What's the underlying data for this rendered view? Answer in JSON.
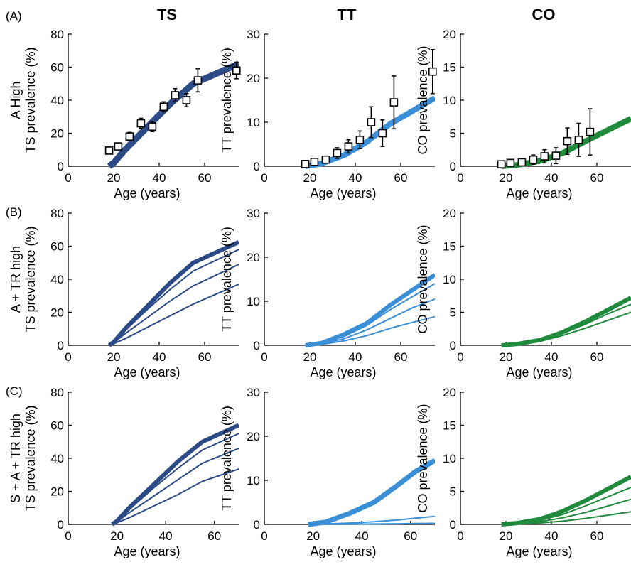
{
  "figure": {
    "column_titles": [
      "TS",
      "TT",
      "CO"
    ],
    "row_letters": [
      "(A)",
      "(B)",
      "(C)"
    ]
  },
  "colors": {
    "TS": "#2b4a86",
    "TT": "#3a8fd6",
    "CO": "#1f8a3c"
  },
  "chart_data": [
    {
      "id": "A-TS",
      "type": "line",
      "row": "(A)",
      "column": "TS",
      "xlabel": "Age (years)",
      "ylabel": [
        "A High",
        "TS prevalence (%)"
      ],
      "xlim": [
        0,
        75
      ],
      "ylim": [
        0,
        80
      ],
      "xticks": [
        "0",
        "20",
        "40",
        "60"
      ],
      "yticks": [
        "0",
        "20",
        "40",
        "60",
        "80"
      ],
      "series": [
        {
          "x": [
            18,
            20,
            25,
            35,
            45,
            55,
            75
          ],
          "y": [
            0,
            2,
            10,
            24,
            38,
            50,
            62
          ],
          "width": 9
        }
      ],
      "observed": [
        {
          "x": 18,
          "y": 9.5,
          "err": 2
        },
        {
          "x": 22,
          "y": 12,
          "err": 2
        },
        {
          "x": 27,
          "y": 18,
          "err": 2.5
        },
        {
          "x": 32,
          "y": 26,
          "err": 3
        },
        {
          "x": 37,
          "y": 24,
          "err": 3
        },
        {
          "x": 42,
          "y": 36,
          "err": 3
        },
        {
          "x": 47,
          "y": 43,
          "err": 4
        },
        {
          "x": 52,
          "y": 40,
          "err": 4
        },
        {
          "x": 57,
          "y": 52,
          "err": 7
        },
        {
          "x": 74,
          "y": 58,
          "err": 5
        }
      ]
    },
    {
      "id": "A-TT",
      "type": "line",
      "row": "(A)",
      "column": "TT",
      "xlabel": "Age (years)",
      "ylabel": [
        "TT prevalence (%)"
      ],
      "xlim": [
        0,
        75
      ],
      "ylim": [
        0,
        30
      ],
      "xticks": [
        "0",
        "20",
        "40",
        "60"
      ],
      "yticks": [
        "0",
        "10",
        "20",
        "30"
      ],
      "series": [
        {
          "x": [
            18,
            25,
            35,
            45,
            55,
            65,
            75
          ],
          "y": [
            0,
            0.6,
            2.5,
            5.5,
            9.5,
            12.5,
            15.5
          ],
          "width": 8
        }
      ],
      "observed": [
        {
          "x": 18,
          "y": 0.5,
          "err": 0.8
        },
        {
          "x": 22,
          "y": 1,
          "err": 0.8
        },
        {
          "x": 27,
          "y": 1.5,
          "err": 0.8
        },
        {
          "x": 32,
          "y": 3,
          "err": 1.2
        },
        {
          "x": 37,
          "y": 4.5,
          "err": 1.5
        },
        {
          "x": 42,
          "y": 6,
          "err": 2
        },
        {
          "x": 47,
          "y": 10,
          "err": 3.5
        },
        {
          "x": 52,
          "y": 7.5,
          "err": 3
        },
        {
          "x": 57,
          "y": 14.5,
          "err": 6
        },
        {
          "x": 74,
          "y": 21.5,
          "err": 5
        }
      ]
    },
    {
      "id": "A-CO",
      "type": "line",
      "row": "(A)",
      "column": "CO",
      "xlabel": "Age (years)",
      "ylabel": [
        "CO prevalence (%)"
      ],
      "xlim": [
        0,
        75
      ],
      "ylim": [
        0,
        20
      ],
      "xticks": [
        "0",
        "20",
        "40",
        "60"
      ],
      "yticks": [
        "0",
        "5",
        "10",
        "15",
        "20"
      ],
      "series": [
        {
          "x": [
            18,
            25,
            35,
            45,
            55,
            65,
            75
          ],
          "y": [
            0,
            0.2,
            0.8,
            2,
            3.8,
            5.5,
            7.2
          ],
          "width": 8
        }
      ],
      "observed": [
        {
          "x": 18,
          "y": 0.3,
          "err": 0.5
        },
        {
          "x": 22,
          "y": 0.5,
          "err": 0.5
        },
        {
          "x": 27,
          "y": 0.6,
          "err": 0.5
        },
        {
          "x": 32,
          "y": 1,
          "err": 0.7
        },
        {
          "x": 37,
          "y": 1.5,
          "err": 1
        },
        {
          "x": 42,
          "y": 1.6,
          "err": 1.2
        },
        {
          "x": 47,
          "y": 3.8,
          "err": 2
        },
        {
          "x": 52,
          "y": 4,
          "err": 2.5
        },
        {
          "x": 57,
          "y": 5.2,
          "err": 3.5
        }
      ]
    },
    {
      "id": "B-TS",
      "type": "line",
      "row": "(B)",
      "column": "TS",
      "xlabel": "Age (years)",
      "ylabel": [
        "A + TR high",
        "TS prevalence (%)"
      ],
      "xlim": [
        0,
        75
      ],
      "ylim": [
        0,
        80
      ],
      "xticks": [
        "0",
        "20",
        "40",
        "60"
      ],
      "yticks": [
        "0",
        "20",
        "40",
        "60",
        "80"
      ],
      "series": [
        {
          "x": [
            18,
            20,
            25,
            35,
            45,
            55,
            75
          ],
          "y": [
            0,
            2,
            10,
            24,
            38,
            50,
            62.5
          ],
          "width": 6
        },
        {
          "x": [
            18,
            20,
            25,
            35,
            45,
            55,
            75
          ],
          "y": [
            0,
            2,
            9,
            22,
            34,
            45,
            58
          ],
          "width": 2
        },
        {
          "x": [
            18,
            20,
            25,
            35,
            45,
            55,
            75
          ],
          "y": [
            0,
            1.5,
            7,
            17,
            27,
            36,
            49
          ],
          "width": 2
        },
        {
          "x": [
            18,
            20,
            25,
            35,
            45,
            55,
            75
          ],
          "y": [
            0,
            1,
            4,
            11,
            18,
            25,
            37
          ],
          "width": 2
        }
      ]
    },
    {
      "id": "B-TT",
      "type": "line",
      "row": "(B)",
      "column": "TT",
      "xlabel": "Age (years)",
      "ylabel": [
        "TT prevalence (%)"
      ],
      "xlim": [
        0,
        75
      ],
      "ylim": [
        0,
        30
      ],
      "xticks": [
        "0",
        "20",
        "40",
        "60"
      ],
      "yticks": [
        "0",
        "10",
        "20",
        "30"
      ],
      "series": [
        {
          "x": [
            18,
            25,
            35,
            45,
            55,
            65,
            75
          ],
          "y": [
            0,
            0.5,
            2.5,
            5,
            9,
            12.5,
            16
          ],
          "width": 6
        },
        {
          "x": [
            18,
            25,
            35,
            45,
            55,
            65,
            75
          ],
          "y": [
            0,
            0.4,
            2,
            4.5,
            8,
            11,
            14
          ],
          "width": 2
        },
        {
          "x": [
            18,
            25,
            35,
            45,
            55,
            65,
            75
          ],
          "y": [
            0,
            0.3,
            1.5,
            3.5,
            6,
            8.5,
            10.5
          ],
          "width": 2
        },
        {
          "x": [
            18,
            25,
            35,
            45,
            55,
            65,
            75
          ],
          "y": [
            0,
            0.2,
            1,
            2.2,
            3.8,
            5.2,
            6.5
          ],
          "width": 2
        }
      ]
    },
    {
      "id": "B-CO",
      "type": "line",
      "row": "(B)",
      "column": "CO",
      "xlabel": "Age (years)",
      "ylabel": [
        "CO prevalence (%)"
      ],
      "xlim": [
        0,
        75
      ],
      "ylim": [
        0,
        20
      ],
      "xticks": [
        "0",
        "20",
        "40",
        "60"
      ],
      "yticks": [
        "0",
        "5",
        "10",
        "15",
        "20"
      ],
      "series": [
        {
          "x": [
            18,
            25,
            35,
            45,
            55,
            65,
            75
          ],
          "y": [
            0,
            0.2,
            0.8,
            2,
            3.6,
            5.4,
            7.2
          ],
          "width": 6
        },
        {
          "x": [
            18,
            25,
            35,
            45,
            55,
            65,
            75
          ],
          "y": [
            0,
            0.2,
            0.7,
            1.8,
            3.2,
            4.8,
            6.2
          ],
          "width": 2
        },
        {
          "x": [
            18,
            25,
            35,
            45,
            55,
            65,
            75
          ],
          "y": [
            0,
            0.1,
            0.6,
            1.5,
            2.6,
            3.8,
            5
          ],
          "width": 2
        }
      ]
    },
    {
      "id": "C-TS",
      "type": "line",
      "row": "(C)",
      "column": "TS",
      "xlabel": "Age (years)",
      "ylabel": [
        "S + A + TR high",
        "TS prevalence (%)"
      ],
      "xlim": [
        0,
        70
      ],
      "ylim": [
        0,
        80
      ],
      "xticks": [
        "0",
        "20",
        "40",
        "60"
      ],
      "yticks": [
        "0",
        "20",
        "40",
        "60",
        "80"
      ],
      "series": [
        {
          "x": [
            18,
            20,
            25,
            35,
            45,
            55,
            70
          ],
          "y": [
            0,
            2,
            10,
            24,
            38,
            50,
            60
          ],
          "width": 6
        },
        {
          "x": [
            18,
            20,
            25,
            35,
            45,
            55,
            70
          ],
          "y": [
            0,
            2,
            9,
            22,
            34,
            45,
            55
          ],
          "width": 2
        },
        {
          "x": [
            18,
            20,
            25,
            35,
            45,
            55,
            70
          ],
          "y": [
            0,
            1.5,
            7,
            17,
            27,
            37,
            46
          ],
          "width": 2
        },
        {
          "x": [
            18,
            20,
            25,
            35,
            45,
            55,
            70
          ],
          "y": [
            0,
            1,
            4,
            11,
            18,
            26,
            33.5
          ],
          "width": 2
        }
      ]
    },
    {
      "id": "C-TT",
      "type": "line",
      "row": "(C)",
      "column": "TT",
      "xlabel": "Age (years)",
      "ylabel": [
        "TT prevalence (%)"
      ],
      "xlim": [
        0,
        70
      ],
      "ylim": [
        0,
        30
      ],
      "xticks": [
        "0",
        "20",
        "40",
        "60"
      ],
      "yticks": [
        "0",
        "10",
        "20",
        "30"
      ],
      "series": [
        {
          "x": [
            18,
            25,
            35,
            45,
            55,
            62,
            70
          ],
          "y": [
            0,
            0.5,
            2.5,
            5,
            9,
            12,
            14.5
          ],
          "width": 7
        },
        {
          "x": [
            18,
            25,
            35,
            45,
            55,
            62,
            70
          ],
          "y": [
            0,
            0.1,
            0.3,
            0.6,
            1,
            1.4,
            1.8
          ],
          "width": 2
        },
        {
          "x": [
            18,
            25,
            35,
            45,
            55,
            62,
            70
          ],
          "y": [
            0,
            0.02,
            0.05,
            0.1,
            0.15,
            0.2,
            0.25
          ],
          "width": 2
        }
      ]
    },
    {
      "id": "C-CO",
      "type": "line",
      "row": "(C)",
      "column": "CO",
      "xlabel": "Age (years)",
      "ylabel": [
        "CO prevalence (%)"
      ],
      "xlim": [
        0,
        75
      ],
      "ylim": [
        0,
        20
      ],
      "xticks": [
        "0",
        "20",
        "40",
        "60"
      ],
      "yticks": [
        "0",
        "5",
        "10",
        "15",
        "20"
      ],
      "series": [
        {
          "x": [
            18,
            25,
            35,
            45,
            55,
            65,
            75
          ],
          "y": [
            0,
            0.2,
            0.8,
            2,
            3.6,
            5.4,
            7.2
          ],
          "width": 6
        },
        {
          "x": [
            18,
            25,
            35,
            45,
            55,
            65,
            75
          ],
          "y": [
            0,
            0.2,
            0.6,
            1.5,
            2.8,
            4.2,
            5.6
          ],
          "width": 2
        },
        {
          "x": [
            18,
            25,
            35,
            45,
            55,
            65,
            75
          ],
          "y": [
            0,
            0.1,
            0.4,
            1,
            1.8,
            2.8,
            3.8
          ],
          "width": 2
        },
        {
          "x": [
            18,
            25,
            35,
            45,
            55,
            65,
            75
          ],
          "y": [
            0,
            0.05,
            0.2,
            0.5,
            0.9,
            1.4,
            1.9
          ],
          "width": 2
        }
      ]
    }
  ]
}
